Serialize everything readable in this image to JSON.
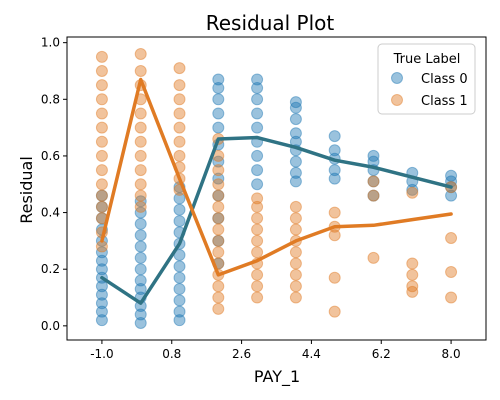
{
  "chart_data": {
    "type": "scatter",
    "title": "Residual Plot",
    "xlabel": "PAY_1",
    "ylabel": "Residual",
    "xlim": [
      -1.9,
      8.9
    ],
    "ylim": [
      -0.05,
      1.02
    ],
    "x_ticks": [
      -1.0,
      0.8,
      2.6,
      4.4,
      6.2,
      8.0
    ],
    "x_tick_labels": [
      "-1.0",
      "0.8",
      "2.6",
      "4.4",
      "6.2",
      "8.0"
    ],
    "y_ticks": [
      0.0,
      0.2,
      0.4,
      0.6,
      0.8,
      1.0
    ],
    "y_tick_labels": [
      "0.0",
      "0.2",
      "0.4",
      "0.6",
      "0.8",
      "1.0"
    ],
    "legend": {
      "title": "True Label",
      "placement": "top-right",
      "entries": [
        "Class 0",
        "Class 1"
      ]
    },
    "grid": false,
    "series": [
      {
        "name": "Class 0",
        "color": "#1f77b4",
        "points": [
          {
            "x": -1,
            "y": 0.02
          },
          {
            "x": -1,
            "y": 0.05
          },
          {
            "x": -1,
            "y": 0.08
          },
          {
            "x": -1,
            "y": 0.11
          },
          {
            "x": -1,
            "y": 0.14
          },
          {
            "x": -1,
            "y": 0.17
          },
          {
            "x": -1,
            "y": 0.2
          },
          {
            "x": -1,
            "y": 0.23
          },
          {
            "x": -1,
            "y": 0.26
          },
          {
            "x": -1,
            "y": 0.3
          },
          {
            "x": -1,
            "y": 0.34
          },
          {
            "x": -1,
            "y": 0.38
          },
          {
            "x": -1,
            "y": 0.42
          },
          {
            "x": -1,
            "y": 0.46
          },
          {
            "x": 0,
            "y": 0.01
          },
          {
            "x": 0,
            "y": 0.04
          },
          {
            "x": 0,
            "y": 0.07
          },
          {
            "x": 0,
            "y": 0.1
          },
          {
            "x": 0,
            "y": 0.13
          },
          {
            "x": 0,
            "y": 0.16
          },
          {
            "x": 0,
            "y": 0.2
          },
          {
            "x": 0,
            "y": 0.24
          },
          {
            "x": 0,
            "y": 0.28
          },
          {
            "x": 0,
            "y": 0.32
          },
          {
            "x": 0,
            "y": 0.36
          },
          {
            "x": 0,
            "y": 0.4
          },
          {
            "x": 0,
            "y": 0.44
          },
          {
            "x": 1,
            "y": 0.02
          },
          {
            "x": 1,
            "y": 0.05
          },
          {
            "x": 1,
            "y": 0.09
          },
          {
            "x": 1,
            "y": 0.13
          },
          {
            "x": 1,
            "y": 0.17
          },
          {
            "x": 1,
            "y": 0.21
          },
          {
            "x": 1,
            "y": 0.25
          },
          {
            "x": 1,
            "y": 0.29
          },
          {
            "x": 1,
            "y": 0.33
          },
          {
            "x": 1,
            "y": 0.37
          },
          {
            "x": 1,
            "y": 0.41
          },
          {
            "x": 1,
            "y": 0.45
          },
          {
            "x": 1,
            "y": 0.49
          },
          {
            "x": 2,
            "y": 0.22
          },
          {
            "x": 2,
            "y": 0.3
          },
          {
            "x": 2,
            "y": 0.38
          },
          {
            "x": 2,
            "y": 0.46
          },
          {
            "x": 2,
            "y": 0.52
          },
          {
            "x": 2,
            "y": 0.58
          },
          {
            "x": 2,
            "y": 0.64
          },
          {
            "x": 2,
            "y": 0.7
          },
          {
            "x": 2,
            "y": 0.75
          },
          {
            "x": 2,
            "y": 0.8
          },
          {
            "x": 2,
            "y": 0.84
          },
          {
            "x": 2,
            "y": 0.87
          },
          {
            "x": 3,
            "y": 0.5
          },
          {
            "x": 3,
            "y": 0.55
          },
          {
            "x": 3,
            "y": 0.6
          },
          {
            "x": 3,
            "y": 0.65
          },
          {
            "x": 3,
            "y": 0.7
          },
          {
            "x": 3,
            "y": 0.75
          },
          {
            "x": 3,
            "y": 0.8
          },
          {
            "x": 3,
            "y": 0.84
          },
          {
            "x": 3,
            "y": 0.87
          },
          {
            "x": 4,
            "y": 0.51
          },
          {
            "x": 4,
            "y": 0.54
          },
          {
            "x": 4,
            "y": 0.58
          },
          {
            "x": 4,
            "y": 0.62
          },
          {
            "x": 4,
            "y": 0.65
          },
          {
            "x": 4,
            "y": 0.68
          },
          {
            "x": 4,
            "y": 0.73
          },
          {
            "x": 4,
            "y": 0.77
          },
          {
            "x": 4,
            "y": 0.79
          },
          {
            "x": 5,
            "y": 0.52
          },
          {
            "x": 5,
            "y": 0.55
          },
          {
            "x": 5,
            "y": 0.59
          },
          {
            "x": 5,
            "y": 0.62
          },
          {
            "x": 5,
            "y": 0.67
          },
          {
            "x": 6,
            "y": 0.46
          },
          {
            "x": 6,
            "y": 0.51
          },
          {
            "x": 6,
            "y": 0.55
          },
          {
            "x": 6,
            "y": 0.58
          },
          {
            "x": 6,
            "y": 0.6
          },
          {
            "x": 7,
            "y": 0.48
          },
          {
            "x": 7,
            "y": 0.51
          },
          {
            "x": 7,
            "y": 0.54
          },
          {
            "x": 8,
            "y": 0.46
          },
          {
            "x": 8,
            "y": 0.49
          },
          {
            "x": 8,
            "y": 0.51
          },
          {
            "x": 8,
            "y": 0.53
          }
        ],
        "trend_line": {
          "x": [
            -1,
            0,
            1,
            2,
            3,
            4,
            5,
            6,
            7,
            8
          ],
          "y": [
            0.17,
            0.08,
            0.29,
            0.66,
            0.665,
            0.63,
            0.585,
            0.56,
            0.525,
            0.49
          ]
        }
      },
      {
        "name": "Class 1",
        "color": "#e07b24",
        "points": [
          {
            "x": -1,
            "y": 0.28
          },
          {
            "x": -1,
            "y": 0.33
          },
          {
            "x": -1,
            "y": 0.38
          },
          {
            "x": -1,
            "y": 0.42
          },
          {
            "x": -1,
            "y": 0.46
          },
          {
            "x": -1,
            "y": 0.5
          },
          {
            "x": -1,
            "y": 0.55
          },
          {
            "x": -1,
            "y": 0.6
          },
          {
            "x": -1,
            "y": 0.65
          },
          {
            "x": -1,
            "y": 0.7
          },
          {
            "x": -1,
            "y": 0.75
          },
          {
            "x": -1,
            "y": 0.8
          },
          {
            "x": -1,
            "y": 0.85
          },
          {
            "x": -1,
            "y": 0.9
          },
          {
            "x": -1,
            "y": 0.95
          },
          {
            "x": 0,
            "y": 0.42
          },
          {
            "x": 0,
            "y": 0.46
          },
          {
            "x": 0,
            "y": 0.5
          },
          {
            "x": 0,
            "y": 0.55
          },
          {
            "x": 0,
            "y": 0.6
          },
          {
            "x": 0,
            "y": 0.65
          },
          {
            "x": 0,
            "y": 0.7
          },
          {
            "x": 0,
            "y": 0.75
          },
          {
            "x": 0,
            "y": 0.8
          },
          {
            "x": 0,
            "y": 0.85
          },
          {
            "x": 0,
            "y": 0.9
          },
          {
            "x": 0,
            "y": 0.96
          },
          {
            "x": 1,
            "y": 0.48
          },
          {
            "x": 1,
            "y": 0.52
          },
          {
            "x": 1,
            "y": 0.56
          },
          {
            "x": 1,
            "y": 0.6
          },
          {
            "x": 1,
            "y": 0.65
          },
          {
            "x": 1,
            "y": 0.7
          },
          {
            "x": 1,
            "y": 0.75
          },
          {
            "x": 1,
            "y": 0.8
          },
          {
            "x": 1,
            "y": 0.85
          },
          {
            "x": 1,
            "y": 0.91
          },
          {
            "x": 2,
            "y": 0.06
          },
          {
            "x": 2,
            "y": 0.1
          },
          {
            "x": 2,
            "y": 0.14
          },
          {
            "x": 2,
            "y": 0.18
          },
          {
            "x": 2,
            "y": 0.22
          },
          {
            "x": 2,
            "y": 0.26
          },
          {
            "x": 2,
            "y": 0.3
          },
          {
            "x": 2,
            "y": 0.34
          },
          {
            "x": 2,
            "y": 0.38
          },
          {
            "x": 2,
            "y": 0.42
          },
          {
            "x": 2,
            "y": 0.46
          },
          {
            "x": 2,
            "y": 0.5
          },
          {
            "x": 2,
            "y": 0.55
          },
          {
            "x": 2,
            "y": 0.6
          },
          {
            "x": 2,
            "y": 0.66
          },
          {
            "x": 3,
            "y": 0.1
          },
          {
            "x": 3,
            "y": 0.14
          },
          {
            "x": 3,
            "y": 0.18
          },
          {
            "x": 3,
            "y": 0.22
          },
          {
            "x": 3,
            "y": 0.26
          },
          {
            "x": 3,
            "y": 0.3
          },
          {
            "x": 3,
            "y": 0.34
          },
          {
            "x": 3,
            "y": 0.38
          },
          {
            "x": 3,
            "y": 0.42
          },
          {
            "x": 3,
            "y": 0.45
          },
          {
            "x": 4,
            "y": 0.1
          },
          {
            "x": 4,
            "y": 0.14
          },
          {
            "x": 4,
            "y": 0.18
          },
          {
            "x": 4,
            "y": 0.22
          },
          {
            "x": 4,
            "y": 0.26
          },
          {
            "x": 4,
            "y": 0.3
          },
          {
            "x": 4,
            "y": 0.34
          },
          {
            "x": 4,
            "y": 0.38
          },
          {
            "x": 4,
            "y": 0.42
          },
          {
            "x": 5,
            "y": 0.05
          },
          {
            "x": 5,
            "y": 0.17
          },
          {
            "x": 5,
            "y": 0.32
          },
          {
            "x": 5,
            "y": 0.35
          },
          {
            "x": 5,
            "y": 0.4
          },
          {
            "x": 6,
            "y": 0.24
          },
          {
            "x": 6,
            "y": 0.46
          },
          {
            "x": 6,
            "y": 0.51
          },
          {
            "x": 7,
            "y": 0.12
          },
          {
            "x": 7,
            "y": 0.14
          },
          {
            "x": 7,
            "y": 0.18
          },
          {
            "x": 7,
            "y": 0.22
          },
          {
            "x": 7,
            "y": 0.47
          },
          {
            "x": 8,
            "y": 0.1
          },
          {
            "x": 8,
            "y": 0.19
          },
          {
            "x": 8,
            "y": 0.31
          },
          {
            "x": 8,
            "y": 0.49
          }
        ],
        "trend_line": {
          "x": [
            -1,
            0,
            1,
            2,
            3,
            4,
            5,
            6,
            7,
            8
          ],
          "y": [
            0.3,
            0.87,
            0.52,
            0.18,
            0.23,
            0.3,
            0.35,
            0.355,
            0.375,
            0.395
          ]
        }
      }
    ]
  }
}
